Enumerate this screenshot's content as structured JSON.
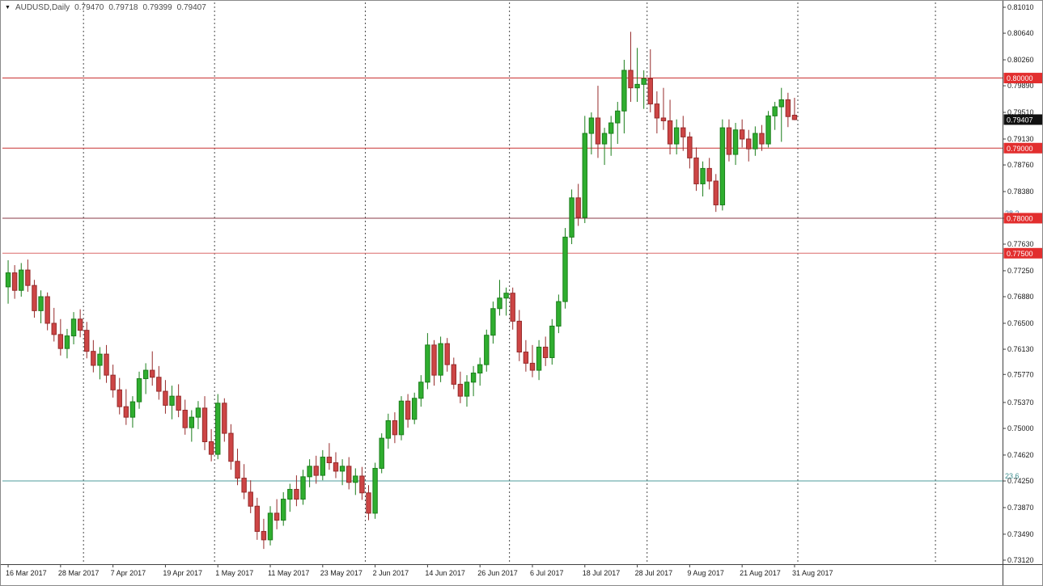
{
  "header": {
    "dropdown_icon": "▼",
    "symbol_period": "AUDUSD,Daily",
    "ohlc": {
      "open": "0.79470",
      "high": "0.79718",
      "low": "0.79399",
      "close": "0.79407"
    }
  },
  "colors": {
    "background": "#ffffff",
    "bull": "#2fae2f",
    "bull_border": "#1b7e1b",
    "bear": "#cd4545",
    "bear_border": "#962b2b",
    "separator": "#4a4a4a",
    "axis_line": "#404040",
    "axis_text": "#1a1a1a",
    "badge_red_bg": "#e22e2e",
    "badge_black_bg": "#101010",
    "badge_text": "#ffffff"
  },
  "chart_data": {
    "type": "candlestick",
    "title": "AUDUSD,Daily",
    "symbol": "AUDUSD",
    "timeframe": "Daily",
    "last_ohlc": {
      "open": 0.7947,
      "high": 0.79718,
      "low": 0.79399,
      "close": 0.79407
    },
    "current_price": {
      "text": "0.79407",
      "value": 0.79407
    },
    "y_axis": {
      "top_price": 0.8101,
      "bottom_price": 0.7312,
      "ticks": [
        "0.81010",
        "0.80640",
        "0.80260",
        "0.79890",
        "0.79510",
        "0.79130",
        "0.78760",
        "0.78380",
        "0.78000",
        "0.77630",
        "0.77250",
        "0.76880",
        "0.76500",
        "0.76130",
        "0.75770",
        "0.75370",
        "0.75000",
        "0.74620",
        "0.74250",
        "0.73870",
        "0.73490",
        "0.73120"
      ]
    },
    "x_axis": {
      "labels": [
        "16 Mar 2017",
        "28 Mar 2017",
        "7 Apr 2017",
        "19 Apr 2017",
        "1 May 2017",
        "11 May 2017",
        "23 May 2017",
        "2 Jun 2017",
        "14 Jun 2017",
        "26 Jun 2017",
        "6 Jul 2017",
        "18 Jul 2017",
        "28 Jul 2017",
        "9 Aug 2017",
        "21 Aug 2017",
        "31 Aug 2017"
      ],
      "label_indices": [
        0,
        8,
        16,
        24,
        32,
        40,
        48,
        56,
        64,
        72,
        80,
        88,
        96,
        104,
        112,
        120
      ]
    },
    "month_separator_indices": [
      12,
      32,
      55,
      77,
      98,
      121,
      142
    ],
    "hlines": [
      {
        "price": 0.8,
        "label": "0.80000",
        "line_color": "#c93232",
        "badge_bg": "#e22e2e",
        "side_label": "",
        "side_label_color": ""
      },
      {
        "price": 0.79,
        "label": "0.79000",
        "line_color": "#c93232",
        "badge_bg": "#e22e2e",
        "side_label": "",
        "side_label_color": ""
      },
      {
        "price": 0.78,
        "label": "0.78000",
        "line_color": "#8a3a44",
        "badge_bg": "#e22e2e",
        "side_label": "38.2",
        "side_label_color": "#4a7aa8"
      },
      {
        "price": 0.775,
        "label": "0.77500",
        "line_color": "#dc6a6a",
        "badge_bg": "#e22e2e",
        "side_label": "",
        "side_label_color": ""
      },
      {
        "price": 0.7425,
        "label": "",
        "line_color": "#4d9b9b",
        "badge_bg": "",
        "side_label": "23.6",
        "side_label_color": "#3f8f8f"
      }
    ],
    "candles": [
      [
        0.7702,
        0.774,
        0.7678,
        0.7722
      ],
      [
        0.7722,
        0.7733,
        0.7685,
        0.7697
      ],
      [
        0.7697,
        0.7736,
        0.7688,
        0.7726
      ],
      [
        0.7726,
        0.7741,
        0.7695,
        0.7704
      ],
      [
        0.7704,
        0.7712,
        0.7658,
        0.7668
      ],
      [
        0.7668,
        0.7697,
        0.765,
        0.7688
      ],
      [
        0.7688,
        0.7694,
        0.764,
        0.765
      ],
      [
        0.765,
        0.7672,
        0.7624,
        0.7634
      ],
      [
        0.7634,
        0.7656,
        0.7604,
        0.7614
      ],
      [
        0.7614,
        0.7642,
        0.76,
        0.7632
      ],
      [
        0.7632,
        0.7666,
        0.762,
        0.7656
      ],
      [
        0.7656,
        0.767,
        0.763,
        0.764
      ],
      [
        0.764,
        0.7652,
        0.76,
        0.761
      ],
      [
        0.761,
        0.7626,
        0.758,
        0.759
      ],
      [
        0.759,
        0.7616,
        0.757,
        0.7606
      ],
      [
        0.7606,
        0.7619,
        0.7565,
        0.7576
      ],
      [
        0.7576,
        0.7591,
        0.7544,
        0.7555
      ],
      [
        0.7555,
        0.7572,
        0.752,
        0.7531
      ],
      [
        0.7531,
        0.7556,
        0.7505,
        0.7516
      ],
      [
        0.7516,
        0.7546,
        0.7501,
        0.7538
      ],
      [
        0.7538,
        0.7581,
        0.7528,
        0.7571
      ],
      [
        0.7571,
        0.7593,
        0.7549,
        0.7583
      ],
      [
        0.7583,
        0.761,
        0.7561,
        0.7573
      ],
      [
        0.7573,
        0.7589,
        0.7541,
        0.7553
      ],
      [
        0.7553,
        0.7569,
        0.7521,
        0.7533
      ],
      [
        0.7533,
        0.7561,
        0.7513,
        0.7546
      ],
      [
        0.7546,
        0.7563,
        0.7516,
        0.7526
      ],
      [
        0.7526,
        0.7541,
        0.7491,
        0.7501
      ],
      [
        0.7501,
        0.7526,
        0.7481,
        0.7516
      ],
      [
        0.7516,
        0.7539,
        0.7499,
        0.7529
      ],
      [
        0.7529,
        0.7546,
        0.7469,
        0.7481
      ],
      [
        0.7481,
        0.7499,
        0.7453,
        0.7463
      ],
      [
        0.7463,
        0.7549,
        0.7456,
        0.7536
      ],
      [
        0.7536,
        0.7543,
        0.7481,
        0.7493
      ],
      [
        0.7493,
        0.7506,
        0.7441,
        0.7453
      ],
      [
        0.7453,
        0.7471,
        0.7419,
        0.7429
      ],
      [
        0.7429,
        0.7449,
        0.7399,
        0.7409
      ],
      [
        0.7409,
        0.7426,
        0.7379,
        0.7389
      ],
      [
        0.7389,
        0.7401,
        0.7341,
        0.7353
      ],
      [
        0.7353,
        0.7371,
        0.7328,
        0.7341
      ],
      [
        0.7341,
        0.7389,
        0.7333,
        0.7379
      ],
      [
        0.7379,
        0.7399,
        0.7356,
        0.7369
      ],
      [
        0.7369,
        0.7409,
        0.7361,
        0.7399
      ],
      [
        0.7399,
        0.7421,
        0.7381,
        0.7413
      ],
      [
        0.7413,
        0.7433,
        0.7389,
        0.7399
      ],
      [
        0.7399,
        0.7441,
        0.7391,
        0.7431
      ],
      [
        0.7431,
        0.7456,
        0.7416,
        0.7446
      ],
      [
        0.7446,
        0.7461,
        0.7421,
        0.7433
      ],
      [
        0.7433,
        0.7469,
        0.7426,
        0.7459
      ],
      [
        0.7459,
        0.7479,
        0.7441,
        0.7451
      ],
      [
        0.7451,
        0.7466,
        0.7429,
        0.7439
      ],
      [
        0.7439,
        0.7456,
        0.7419,
        0.7446
      ],
      [
        0.7446,
        0.7459,
        0.7413,
        0.7423
      ],
      [
        0.7423,
        0.7443,
        0.7405,
        0.7432
      ],
      [
        0.7432,
        0.7445,
        0.7398,
        0.7408
      ],
      [
        0.7408,
        0.7419,
        0.7369,
        0.7379
      ],
      [
        0.7379,
        0.7451,
        0.7371,
        0.7443
      ],
      [
        0.7443,
        0.7493,
        0.7436,
        0.7486
      ],
      [
        0.7486,
        0.7521,
        0.7471,
        0.7511
      ],
      [
        0.7511,
        0.7523,
        0.7479,
        0.7491
      ],
      [
        0.7491,
        0.7546,
        0.7483,
        0.7539
      ],
      [
        0.7539,
        0.7549,
        0.7501,
        0.7513
      ],
      [
        0.7513,
        0.7551,
        0.7506,
        0.7543
      ],
      [
        0.7543,
        0.7576,
        0.7531,
        0.7566
      ],
      [
        0.7566,
        0.7636,
        0.7556,
        0.7619
      ],
      [
        0.7619,
        0.7626,
        0.7561,
        0.7576
      ],
      [
        0.7576,
        0.7631,
        0.7566,
        0.7621
      ],
      [
        0.7621,
        0.7629,
        0.7581,
        0.7591
      ],
      [
        0.7591,
        0.7601,
        0.7556,
        0.7563
      ],
      [
        0.7563,
        0.7581,
        0.7536,
        0.7546
      ],
      [
        0.7546,
        0.7576,
        0.7531,
        0.7566
      ],
      [
        0.7566,
        0.7589,
        0.7546,
        0.7579
      ],
      [
        0.7579,
        0.7601,
        0.7561,
        0.7591
      ],
      [
        0.7591,
        0.7641,
        0.7581,
        0.7633
      ],
      [
        0.7633,
        0.7681,
        0.7621,
        0.7671
      ],
      [
        0.7671,
        0.7712,
        0.7661,
        0.7686
      ],
      [
        0.7686,
        0.7701,
        0.7661,
        0.7693
      ],
      [
        0.7693,
        0.7701,
        0.7641,
        0.7653
      ],
      [
        0.7653,
        0.7669,
        0.7596,
        0.7609
      ],
      [
        0.7609,
        0.7626,
        0.7581,
        0.7593
      ],
      [
        0.7593,
        0.7619,
        0.7573,
        0.7583
      ],
      [
        0.7583,
        0.7626,
        0.7569,
        0.7616
      ],
      [
        0.7616,
        0.7631,
        0.7589,
        0.7601
      ],
      [
        0.7601,
        0.7656,
        0.7591,
        0.7646
      ],
      [
        0.7646,
        0.7691,
        0.7636,
        0.7681
      ],
      [
        0.7681,
        0.7786,
        0.7671,
        0.7773
      ],
      [
        0.7773,
        0.7841,
        0.7763,
        0.7829
      ],
      [
        0.7829,
        0.7849,
        0.7789,
        0.7801
      ],
      [
        0.7801,
        0.7946,
        0.7793,
        0.7921
      ],
      [
        0.7921,
        0.7951,
        0.7891,
        0.7943
      ],
      [
        0.7943,
        0.7989,
        0.7886,
        0.7906
      ],
      [
        0.7906,
        0.7929,
        0.7876,
        0.7921
      ],
      [
        0.7921,
        0.7946,
        0.7889,
        0.7936
      ],
      [
        0.7936,
        0.7966,
        0.7906,
        0.7953
      ],
      [
        0.7953,
        0.8026,
        0.7921,
        0.8011
      ],
      [
        0.8011,
        0.8066,
        0.7966,
        0.7986
      ],
      [
        0.7986,
        0.8043,
        0.7966,
        0.7991
      ],
      [
        0.7991,
        0.8011,
        0.7956,
        0.7999
      ],
      [
        0.7999,
        0.8041,
        0.7951,
        0.7963
      ],
      [
        0.7963,
        0.7981,
        0.7921,
        0.7943
      ],
      [
        0.7943,
        0.7986,
        0.7926,
        0.7939
      ],
      [
        0.7939,
        0.7969,
        0.7891,
        0.7906
      ],
      [
        0.7906,
        0.7941,
        0.7891,
        0.7929
      ],
      [
        0.7929,
        0.7946,
        0.7896,
        0.7916
      ],
      [
        0.7916,
        0.7923,
        0.7871,
        0.7886
      ],
      [
        0.7886,
        0.7901,
        0.7839,
        0.7849
      ],
      [
        0.7849,
        0.7881,
        0.7831,
        0.7871
      ],
      [
        0.7871,
        0.7886,
        0.7841,
        0.7853
      ],
      [
        0.7853,
        0.7863,
        0.7809,
        0.7819
      ],
      [
        0.7819,
        0.7941,
        0.7811,
        0.7929
      ],
      [
        0.7929,
        0.7941,
        0.7881,
        0.7891
      ],
      [
        0.7891,
        0.7936,
        0.7876,
        0.7926
      ],
      [
        0.7926,
        0.7941,
        0.7901,
        0.7913
      ],
      [
        0.7913,
        0.7926,
        0.7881,
        0.7899
      ],
      [
        0.7899,
        0.7931,
        0.7889,
        0.7921
      ],
      [
        0.7921,
        0.7933,
        0.7896,
        0.7906
      ],
      [
        0.7906,
        0.7953,
        0.7901,
        0.7946
      ],
      [
        0.7946,
        0.7966,
        0.7926,
        0.7959
      ],
      [
        0.7959,
        0.7986,
        0.7909,
        0.7969
      ],
      [
        0.7969,
        0.7979,
        0.793,
        0.7945
      ],
      [
        0.7947,
        0.79718,
        0.79399,
        0.79407
      ]
    ]
  }
}
